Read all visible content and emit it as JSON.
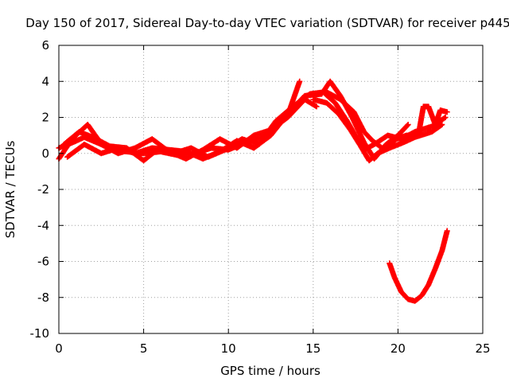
{
  "chart_data": {
    "type": "scatter",
    "title": "Day 150 of 2017, Sidereal Day-to-day VTEC variation (SDTVAR) for receiver p445",
    "xlabel": "GPS time / hours",
    "ylabel": "SDTVAR / TECUs",
    "xlim": [
      0,
      25
    ],
    "ylim": [
      -10,
      6
    ],
    "xticks": [
      0,
      5,
      10,
      15,
      20,
      25
    ],
    "xtick_labels": [
      "0",
      "5",
      "10",
      "15",
      "20",
      "25"
    ],
    "yticks": [
      -10,
      -8,
      -6,
      -4,
      -2,
      0,
      2,
      4,
      6
    ],
    "ytick_labels": [
      "-10",
      "-8",
      "-6",
      "-4",
      "-2",
      "0",
      "2",
      "4",
      "6"
    ],
    "grid": true,
    "marker": "plus",
    "series": [
      {
        "name": "main",
        "color": "#ff0000",
        "tracks": [
          [
            [
              0,
              -0.3
            ],
            [
              0.5,
              0.4
            ],
            [
              1.0,
              1.0
            ],
            [
              1.7,
              1.6
            ],
            [
              2.3,
              0.8
            ],
            [
              3.0,
              0.2
            ],
            [
              4.0,
              0.1
            ],
            [
              5.0,
              0.0
            ],
            [
              6.0,
              0.1
            ],
            [
              7.0,
              -0.1
            ],
            [
              8.0,
              0.0
            ],
            [
              9.0,
              0.3
            ],
            [
              10.0,
              0.2
            ],
            [
              11.0,
              0.6
            ],
            [
              12.0,
              0.9
            ],
            [
              13.0,
              1.6
            ],
            [
              13.6,
              2.4
            ],
            [
              14.2,
              4.0
            ]
          ],
          [
            [
              0,
              0.3
            ],
            [
              0.8,
              0.6
            ],
            [
              1.5,
              0.9
            ],
            [
              2.5,
              0.5
            ],
            [
              3.5,
              0.0
            ],
            [
              4.5,
              0.3
            ],
            [
              5.5,
              0.8
            ],
            [
              6.5,
              0.1
            ],
            [
              7.5,
              -0.3
            ],
            [
              8.5,
              0.2
            ],
            [
              9.5,
              0.8
            ],
            [
              10.5,
              0.3
            ],
            [
              11.5,
              1.0
            ],
            [
              12.5,
              1.3
            ],
            [
              13.5,
              2.0
            ],
            [
              14.5,
              3.0
            ],
            [
              15.2,
              2.6
            ]
          ],
          [
            [
              0.3,
              0.5
            ],
            [
              1.2,
              1.2
            ],
            [
              2.0,
              0.9
            ],
            [
              3.0,
              0.4
            ],
            [
              4.0,
              0.3
            ],
            [
              5.0,
              -0.4
            ],
            [
              5.8,
              0.2
            ],
            [
              6.8,
              0.0
            ],
            [
              7.8,
              0.3
            ],
            [
              8.8,
              -0.2
            ],
            [
              9.8,
              0.2
            ],
            [
              10.8,
              0.8
            ],
            [
              11.8,
              0.5
            ],
            [
              12.8,
              1.8
            ],
            [
              13.8,
              2.6
            ],
            [
              14.8,
              3.3
            ],
            [
              15.6,
              3.4
            ],
            [
              16.3,
              2.8
            ],
            [
              17.0,
              1.8
            ],
            [
              17.6,
              0.8
            ],
            [
              18.0,
              0.2
            ],
            [
              18.6,
              0.5
            ],
            [
              19.4,
              1.0
            ],
            [
              20.2,
              0.8
            ],
            [
              21.0,
              1.2
            ],
            [
              22.0,
              1.5
            ],
            [
              22.8,
              2.0
            ]
          ],
          [
            [
              0.5,
              -0.2
            ],
            [
              1.5,
              0.5
            ],
            [
              2.5,
              0.0
            ],
            [
              3.5,
              0.3
            ],
            [
              4.5,
              0.0
            ],
            [
              5.5,
              0.3
            ],
            [
              6.5,
              0.2
            ],
            [
              7.5,
              0.1
            ],
            [
              8.5,
              -0.3
            ],
            [
              9.5,
              0.1
            ],
            [
              10.5,
              0.7
            ],
            [
              11.5,
              0.3
            ],
            [
              12.5,
              1.0
            ],
            [
              13.5,
              2.2
            ],
            [
              14.5,
              3.2
            ],
            [
              15.5,
              3.3
            ],
            [
              16.0,
              4.0
            ],
            [
              16.6,
              3.2
            ],
            [
              17.3,
              2.0
            ],
            [
              18.0,
              0.6
            ],
            [
              18.6,
              -0.3
            ],
            [
              19.3,
              0.5
            ],
            [
              20.0,
              1.0
            ],
            [
              20.6,
              1.6
            ]
          ],
          [
            [
              15.0,
              3.0
            ],
            [
              15.8,
              2.8
            ],
            [
              16.5,
              2.2
            ],
            [
              17.2,
              1.3
            ],
            [
              17.8,
              0.4
            ],
            [
              18.3,
              -0.4
            ],
            [
              18.8,
              0.0
            ],
            [
              19.5,
              0.3
            ],
            [
              20.3,
              0.6
            ],
            [
              21.0,
              0.9
            ],
            [
              22.0,
              1.2
            ],
            [
              22.6,
              1.6
            ]
          ],
          [
            [
              15.8,
              3.4
            ],
            [
              16.6,
              3.0
            ],
            [
              17.4,
              2.3
            ],
            [
              18.0,
              1.2
            ],
            [
              18.5,
              0.7
            ],
            [
              19.2,
              0.2
            ],
            [
              19.9,
              0.8
            ],
            [
              20.5,
              1.0
            ],
            [
              21.2,
              1.0
            ],
            [
              21.5,
              2.6
            ],
            [
              21.8,
              2.6
            ],
            [
              22.2,
              1.6
            ],
            [
              22.5,
              2.4
            ],
            [
              22.9,
              2.3
            ]
          ],
          [
            [
              19.5,
              -6.1
            ],
            [
              19.8,
              -6.9
            ],
            [
              20.2,
              -7.7
            ],
            [
              20.6,
              -8.1
            ],
            [
              21.0,
              -8.2
            ],
            [
              21.4,
              -7.9
            ],
            [
              21.8,
              -7.3
            ],
            [
              22.2,
              -6.4
            ],
            [
              22.6,
              -5.4
            ],
            [
              22.9,
              -4.3
            ]
          ]
        ]
      }
    ]
  }
}
